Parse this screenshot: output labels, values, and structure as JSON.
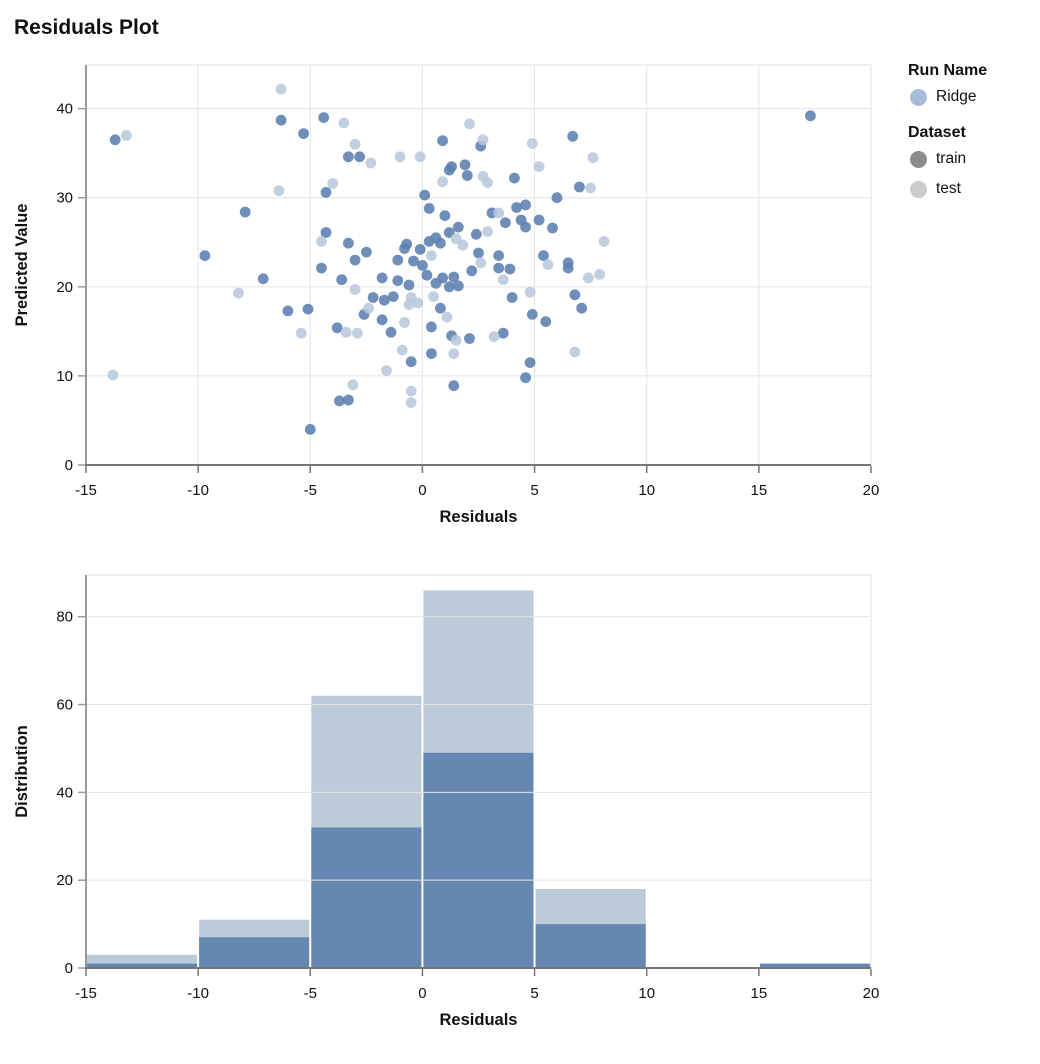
{
  "title": "Residuals Plot",
  "legend": {
    "run_name_title": "Run Name",
    "run_items": [
      {
        "label": "Ridge",
        "color": "#a6bcd9"
      }
    ],
    "dataset_title": "Dataset",
    "dataset_items": [
      {
        "label": "train",
        "color": "#8c8c8c"
      },
      {
        "label": "test",
        "color": "#cbcbcb"
      }
    ]
  },
  "colors": {
    "train_point": "#5b7fb0",
    "test_point": "#b8c8dc",
    "hist_train": "#6687b1",
    "hist_test": "#bdcada",
    "gridline": "#e4e4e4",
    "plot_border": "#e0e0e0",
    "axis_bottom": "#757575",
    "axis_left": "#9a9a9a"
  },
  "chart_data": [
    {
      "type": "scatter",
      "title": "Residuals Plot",
      "xlabel": "Residuals",
      "ylabel": "Predicted Value",
      "xlim": [
        -15,
        20
      ],
      "ylim": [
        0,
        44.9
      ],
      "xticks": [
        -15,
        -10,
        -5,
        0,
        5,
        10,
        15,
        20
      ],
      "yticks": [
        0,
        10,
        20,
        30,
        40
      ],
      "grid": "both",
      "legend_position": "right",
      "series": [
        {
          "name": "train",
          "color": "#5b7fb0",
          "points": [
            [
              -13.7,
              36.5
            ],
            [
              -6.3,
              38.7
            ],
            [
              -5.3,
              37.2
            ],
            [
              -4.4,
              39.0
            ],
            [
              -3.3,
              34.6
            ],
            [
              -4.3,
              30.6
            ],
            [
              -7.9,
              28.4
            ],
            [
              -4.3,
              26.1
            ],
            [
              -3.3,
              24.9
            ],
            [
              -9.7,
              23.5
            ],
            [
              -3.0,
              23.0
            ],
            [
              17.3,
              39.2
            ],
            [
              0.9,
              36.4
            ],
            [
              2.6,
              35.8
            ],
            [
              -2.8,
              34.6
            ],
            [
              6.7,
              36.9
            ],
            [
              1.9,
              33.7
            ],
            [
              1.3,
              33.5
            ],
            [
              1.2,
              33.1
            ],
            [
              2.0,
              32.5
            ],
            [
              4.1,
              32.2
            ],
            [
              7.0,
              31.2
            ],
            [
              0.1,
              30.3
            ],
            [
              6.0,
              30.0
            ],
            [
              0.3,
              28.8
            ],
            [
              3.1,
              28.3
            ],
            [
              4.2,
              28.9
            ],
            [
              4.6,
              29.2
            ],
            [
              1.0,
              28.0
            ],
            [
              3.7,
              27.2
            ],
            [
              4.4,
              27.5
            ],
            [
              4.6,
              26.7
            ],
            [
              5.2,
              27.5
            ],
            [
              5.8,
              26.6
            ],
            [
              1.6,
              26.7
            ],
            [
              1.2,
              26.1
            ],
            [
              0.6,
              25.5
            ],
            [
              0.8,
              24.9
            ],
            [
              -0.7,
              24.8
            ],
            [
              -0.8,
              24.3
            ],
            [
              -2.5,
              23.9
            ],
            [
              -0.1,
              24.2
            ],
            [
              0.3,
              25.1
            ],
            [
              2.5,
              23.8
            ],
            [
              3.4,
              23.5
            ],
            [
              5.4,
              23.5
            ],
            [
              6.5,
              22.7
            ],
            [
              -1.1,
              23.0
            ],
            [
              -7.1,
              20.9
            ],
            [
              -4.5,
              22.1
            ],
            [
              -3.6,
              20.8
            ],
            [
              -6.0,
              17.3
            ],
            [
              -5.1,
              17.5
            ],
            [
              -3.8,
              15.4
            ],
            [
              -3.3,
              7.3
            ],
            [
              -3.7,
              7.2
            ],
            [
              -5.0,
              4.0
            ],
            [
              -1.8,
              21.0
            ],
            [
              -1.1,
              20.7
            ],
            [
              -0.6,
              20.2
            ],
            [
              0.2,
              21.3
            ],
            [
              0.9,
              21.0
            ],
            [
              1.4,
              21.1
            ],
            [
              0.6,
              20.4
            ],
            [
              1.2,
              20.0
            ],
            [
              1.6,
              20.1
            ],
            [
              3.4,
              22.1
            ],
            [
              3.9,
              22.0
            ],
            [
              6.5,
              22.1
            ],
            [
              -2.2,
              18.8
            ],
            [
              -1.7,
              18.5
            ],
            [
              -1.3,
              18.9
            ],
            [
              0.8,
              17.6
            ],
            [
              -2.6,
              16.9
            ],
            [
              -1.8,
              16.3
            ],
            [
              -1.4,
              14.9
            ],
            [
              0.4,
              15.5
            ],
            [
              1.3,
              14.5
            ],
            [
              2.1,
              14.2
            ],
            [
              3.6,
              14.8
            ],
            [
              -0.5,
              11.6
            ],
            [
              0.4,
              12.5
            ],
            [
              4.8,
              11.5
            ],
            [
              4.6,
              9.8
            ],
            [
              1.4,
              8.9
            ],
            [
              4.0,
              18.8
            ],
            [
              6.8,
              19.1
            ],
            [
              7.1,
              17.6
            ],
            [
              4.9,
              16.9
            ],
            [
              5.5,
              16.1
            ],
            [
              0.0,
              22.4
            ],
            [
              2.2,
              21.8
            ],
            [
              -0.4,
              22.9
            ],
            [
              2.4,
              25.9
            ]
          ]
        },
        {
          "name": "test",
          "color": "#b8c8dc",
          "points": [
            [
              -6.3,
              42.2
            ],
            [
              -3.5,
              38.4
            ],
            [
              -13.2,
              37.0
            ],
            [
              -3.0,
              36.0
            ],
            [
              -4.0,
              31.6
            ],
            [
              -6.4,
              30.8
            ],
            [
              -4.5,
              25.1
            ],
            [
              2.1,
              38.3
            ],
            [
              2.7,
              36.5
            ],
            [
              -2.3,
              33.9
            ],
            [
              -1.0,
              34.6
            ],
            [
              -0.1,
              34.6
            ],
            [
              4.9,
              36.1
            ],
            [
              7.6,
              34.5
            ],
            [
              0.9,
              31.8
            ],
            [
              2.7,
              32.4
            ],
            [
              2.9,
              31.7
            ],
            [
              5.2,
              33.5
            ],
            [
              7.5,
              31.1
            ],
            [
              3.4,
              28.3
            ],
            [
              2.9,
              26.2
            ],
            [
              1.5,
              25.4
            ],
            [
              1.8,
              24.7
            ],
            [
              8.1,
              25.1
            ],
            [
              -8.2,
              19.3
            ],
            [
              -3.0,
              19.7
            ],
            [
              -5.4,
              14.8
            ],
            [
              -3.4,
              14.9
            ],
            [
              -13.8,
              10.1
            ],
            [
              -3.1,
              9.0
            ],
            [
              5.6,
              22.5
            ],
            [
              7.4,
              21.0
            ],
            [
              7.9,
              21.4
            ],
            [
              -2.4,
              17.6
            ],
            [
              -0.5,
              18.8
            ],
            [
              -0.2,
              18.2
            ],
            [
              0.5,
              18.9
            ],
            [
              -0.6,
              18.0
            ],
            [
              -0.8,
              16.0
            ],
            [
              -2.9,
              14.8
            ],
            [
              1.1,
              16.6
            ],
            [
              1.5,
              14.0
            ],
            [
              3.2,
              14.4
            ],
            [
              -0.9,
              12.9
            ],
            [
              1.4,
              12.5
            ],
            [
              -1.6,
              10.6
            ],
            [
              -0.5,
              8.3
            ],
            [
              -0.5,
              7.0
            ],
            [
              6.8,
              12.7
            ],
            [
              4.8,
              19.4
            ],
            [
              3.6,
              20.8
            ],
            [
              0.4,
              23.5
            ],
            [
              2.6,
              22.7
            ]
          ]
        }
      ]
    },
    {
      "type": "bar",
      "subtype": "stacked-histogram",
      "xlabel": "Residuals",
      "ylabel": "Distribution",
      "xlim": [
        -15,
        20
      ],
      "ylim": [
        0,
        89.5
      ],
      "xticks": [
        -15,
        -10,
        -5,
        0,
        5,
        10,
        15,
        20
      ],
      "yticks": [
        0,
        20,
        40,
        60,
        80
      ],
      "grid": "horizontal",
      "bin_edges": [
        -15,
        -10,
        -5,
        0,
        5,
        10,
        15,
        20
      ],
      "series": [
        {
          "name": "train",
          "color": "#6687b1",
          "values": [
            1,
            7,
            32,
            49,
            10,
            0,
            1
          ]
        },
        {
          "name": "test",
          "color": "#bdcada",
          "values": [
            2,
            4,
            30,
            37,
            8,
            0,
            0
          ]
        }
      ],
      "totals": [
        3,
        11,
        62,
        86,
        18,
        0,
        1
      ]
    }
  ]
}
